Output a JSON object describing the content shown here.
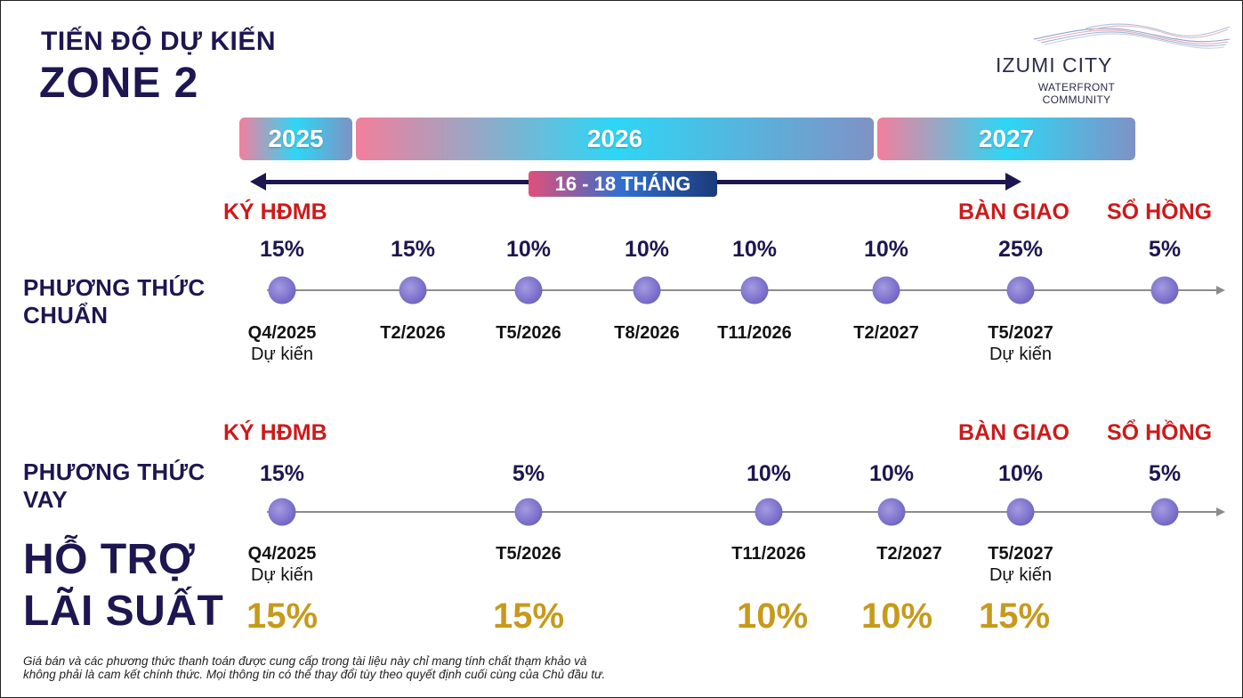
{
  "header": {
    "title_line1": "TIẾN ĐỘ DỰ KIẾN",
    "title_line2": "ZONE 2"
  },
  "logo": {
    "name": "IZUMI CITY",
    "sub_line1": "WATERFRONT",
    "sub_line2": "COMMUNITY"
  },
  "years": [
    "2025",
    "2026",
    "2027"
  ],
  "duration_label": "16 - 18 THÁNG",
  "milestones": {
    "sign": "KÝ HĐMB",
    "handover": "BÀN GIAO",
    "pink_book": "SỔ HỒNG"
  },
  "standard": {
    "label_line1": "PHƯƠNG THỨC",
    "label_line2": "CHUẨN",
    "steps": [
      {
        "pct": "15%",
        "date": "Q4/2025",
        "note": "Dự kiến"
      },
      {
        "pct": "15%",
        "date": "T2/2026",
        "note": ""
      },
      {
        "pct": "10%",
        "date": "T5/2026",
        "note": ""
      },
      {
        "pct": "10%",
        "date": "T8/2026",
        "note": ""
      },
      {
        "pct": "10%",
        "date": "T11/2026",
        "note": ""
      },
      {
        "pct": "10%",
        "date": "T2/2027",
        "note": ""
      },
      {
        "pct": "25%",
        "date": "T5/2027",
        "note": "Dự kiến"
      },
      {
        "pct": "5%",
        "date": "",
        "note": ""
      }
    ]
  },
  "loan": {
    "label_line1": "PHƯƠNG THỨC",
    "label_line2": "VAY",
    "steps": [
      {
        "pct": "15%",
        "date": "Q4/2025",
        "note": "Dự kiến",
        "rate": "15%"
      },
      {
        "pct": "5%",
        "date": "T5/2026",
        "note": "",
        "rate": "15%"
      },
      {
        "pct": "10%",
        "date": "T11/2026",
        "note": "",
        "rate": "10%"
      },
      {
        "pct": "10%",
        "date": "T2/2027",
        "note": "",
        "rate": "10%"
      },
      {
        "pct": "10%",
        "date": "T5/2027",
        "note": "Dự kiến",
        "rate": "15%"
      },
      {
        "pct": "5%",
        "date": "",
        "note": "",
        "rate": ""
      }
    ]
  },
  "interest_support": {
    "line1": "HỖ TRỢ",
    "line2": "LÃI SUẤT"
  },
  "disclaimer": {
    "line1": "Giá bán và các phương thức thanh toán được cung cấp trong tài liệu này chỉ mang tính chất thạm khảo và",
    "line2": "không phải là cam kết chính thức. Mọi thông tin có thể thay đổi tùy theo quyết định cuối cùng của Chủ đầu tư."
  },
  "colors": {
    "navy": "#1e1650",
    "red": "#cc1a1a",
    "gold": "#c79a1c"
  }
}
